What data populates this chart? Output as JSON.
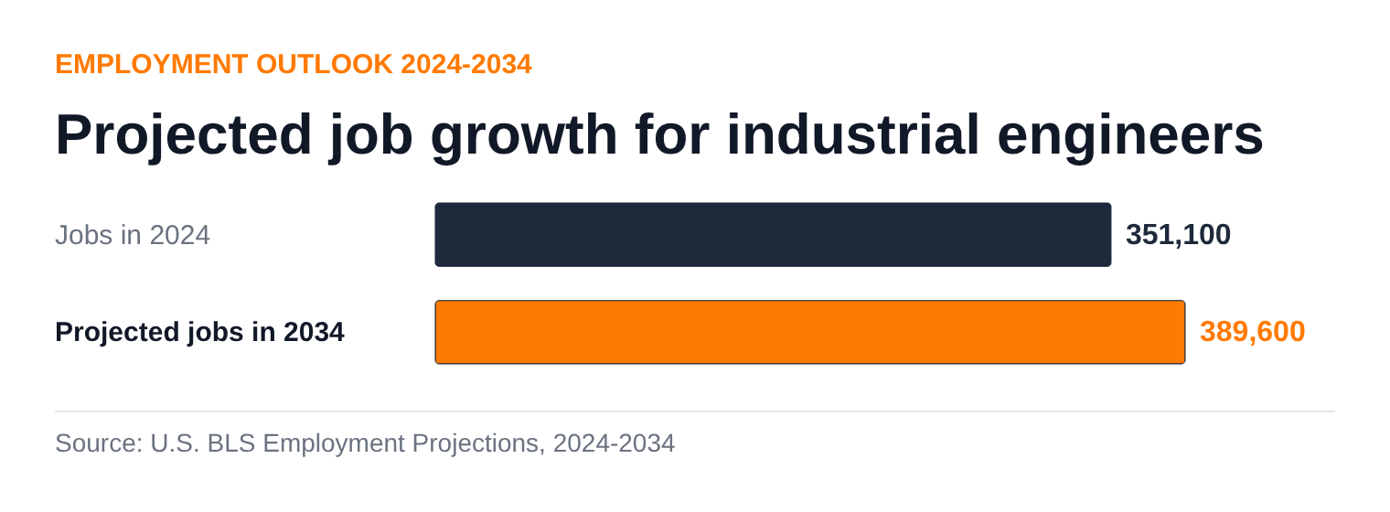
{
  "chart_data": {
    "type": "bar",
    "orientation": "horizontal",
    "subtitle": "EMPLOYMENT OUTLOOK 2024-2034",
    "title": "Projected job growth for industrial engineers",
    "categories": [
      "Jobs in 2024",
      "Projected jobs in 2034"
    ],
    "values": [
      351100,
      389600
    ],
    "colors": [
      "#1e293b",
      "#ff7a00"
    ],
    "value_labels": [
      "351,100",
      "389,600"
    ],
    "annotations": [
      "Source: U.S. BLS Employment Projections, 2024-2034"
    ]
  }
}
